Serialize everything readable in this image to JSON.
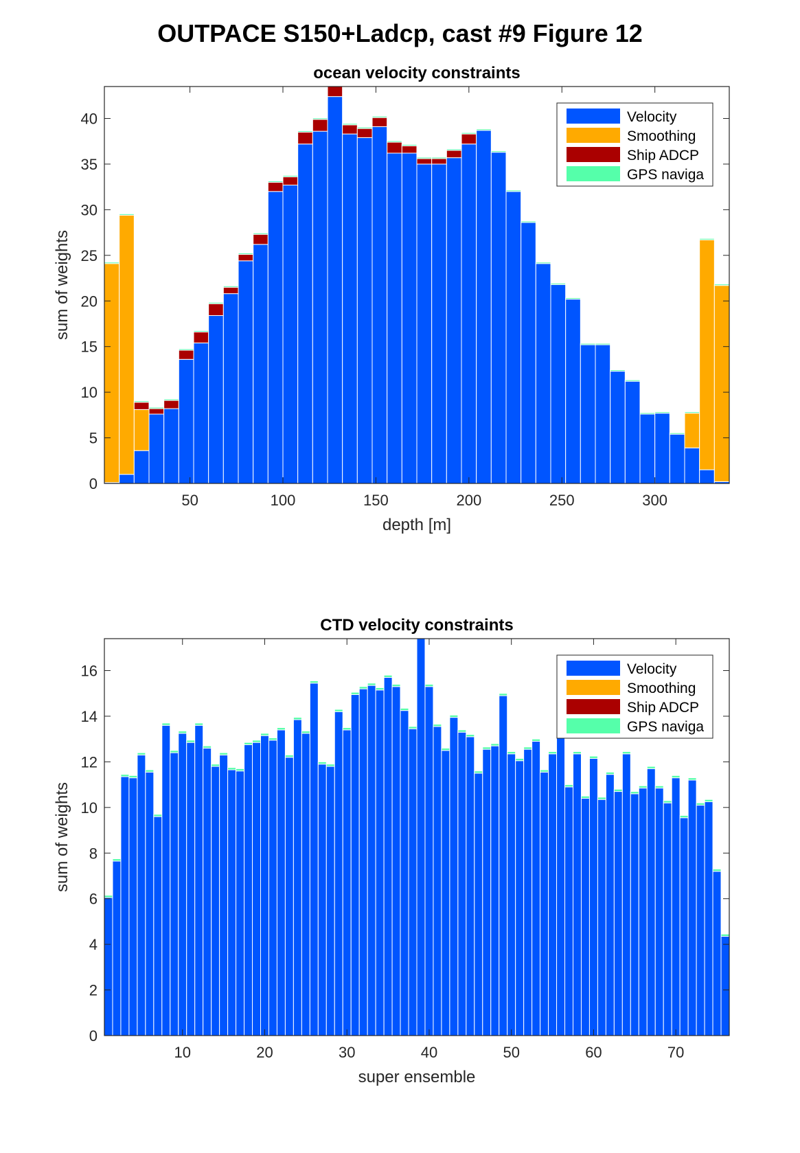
{
  "figure": {
    "title": "OUTPACE S150+Ladcp, cast #9  Figure 12"
  },
  "colors": {
    "velocity": "#0055ff",
    "smoothing": "#ffaa00",
    "ship_adcp": "#aa0000",
    "gps": "#55ffaa",
    "bar_edge": "#ffffff"
  },
  "chart_data": [
    {
      "type": "bar",
      "stacked": true,
      "title": "ocean velocity constraints",
      "xlabel": "depth [m]",
      "ylabel": "sum of weights",
      "xlim": [
        4,
        340
      ],
      "ylim": [
        0,
        43.5
      ],
      "xticks": [
        50,
        100,
        150,
        200,
        250,
        300
      ],
      "yticks": [
        0,
        5,
        10,
        15,
        20,
        25,
        30,
        35,
        40
      ],
      "bar_width": 8,
      "legend": {
        "location": "top-right",
        "entries": [
          "Velocity",
          "Smoothing",
          "Ship ADCP",
          "GPS naviga"
        ]
      },
      "x": [
        8,
        16,
        24,
        32,
        40,
        48,
        56,
        64,
        72,
        80,
        88,
        96,
        104,
        112,
        120,
        128,
        136,
        144,
        152,
        160,
        168,
        176,
        184,
        192,
        200,
        208,
        216,
        224,
        232,
        240,
        248,
        256,
        264,
        272,
        280,
        288,
        296,
        304,
        312,
        320,
        328,
        336
      ],
      "series": [
        {
          "name": "Velocity",
          "color": "#0055ff",
          "values": [
            0.1,
            1.0,
            3.6,
            7.6,
            8.2,
            13.6,
            15.4,
            18.4,
            20.8,
            24.4,
            26.2,
            32.0,
            32.7,
            37.2,
            38.6,
            42.4,
            38.3,
            37.9,
            39.1,
            36.2,
            36.2,
            35.0,
            35.0,
            35.7,
            37.2,
            38.7,
            36.3,
            32.0,
            28.6,
            24.1,
            21.8,
            20.2,
            15.2,
            15.2,
            12.3,
            11.2,
            7.6,
            7.7,
            5.4,
            3.9,
            1.5,
            0.2
          ]
        },
        {
          "name": "Smoothing",
          "color": "#ffaa00",
          "values": [
            24.0,
            28.4,
            4.5,
            0,
            0,
            0,
            0,
            0,
            0,
            0,
            0,
            0,
            0,
            0,
            0,
            0,
            0,
            0,
            0,
            0,
            0,
            0,
            0,
            0,
            0,
            0,
            0,
            0,
            0,
            0,
            0,
            0,
            0,
            0,
            0,
            0,
            0,
            0,
            0,
            3.8,
            25.2,
            21.5
          ]
        },
        {
          "name": "Ship ADCP",
          "color": "#aa0000",
          "values": [
            0,
            0,
            0.8,
            0.6,
            0.9,
            1.0,
            1.2,
            1.3,
            0.7,
            0.7,
            1.1,
            1.0,
            0.9,
            1.3,
            1.3,
            1.3,
            1.0,
            1.0,
            1.0,
            1.2,
            0.8,
            0.6,
            0.6,
            0.8,
            1.1,
            0,
            0,
            0,
            0,
            0,
            0,
            0,
            0,
            0,
            0,
            0,
            0,
            0,
            0,
            0,
            0,
            0
          ]
        },
        {
          "name": "GPS naviga",
          "color": "#55ffaa",
          "values": [
            0.15,
            0.15,
            0.15,
            0.15,
            0.15,
            0.15,
            0.15,
            0.15,
            0.15,
            0.15,
            0.15,
            0.15,
            0.15,
            0.15,
            0.15,
            0.15,
            0.15,
            0.15,
            0.15,
            0.15,
            0.15,
            0.15,
            0.15,
            0.15,
            0.15,
            0.15,
            0.15,
            0.15,
            0.15,
            0.15,
            0.15,
            0.15,
            0.15,
            0.15,
            0.15,
            0.15,
            0.15,
            0.15,
            0.15,
            0.15,
            0.15,
            0.15
          ]
        }
      ]
    },
    {
      "type": "bar",
      "stacked": true,
      "title": "CTD velocity constraints",
      "xlabel": "super ensemble",
      "ylabel": "sum of weights",
      "xlim": [
        0.5,
        76.5
      ],
      "ylim": [
        0,
        17.4
      ],
      "xticks": [
        10,
        20,
        30,
        40,
        50,
        60,
        70
      ],
      "yticks": [
        0,
        2,
        4,
        6,
        8,
        10,
        12,
        14,
        16
      ],
      "bar_width": 1,
      "legend": {
        "location": "top-right",
        "entries": [
          "Velocity",
          "Smoothing",
          "Ship ADCP",
          "GPS naviga"
        ]
      },
      "x": [
        1,
        2,
        3,
        4,
        5,
        6,
        7,
        8,
        9,
        10,
        11,
        12,
        13,
        14,
        15,
        16,
        17,
        18,
        19,
        20,
        21,
        22,
        23,
        24,
        25,
        26,
        27,
        28,
        29,
        30,
        31,
        32,
        33,
        34,
        35,
        36,
        37,
        38,
        39,
        40,
        41,
        42,
        43,
        44,
        45,
        46,
        47,
        48,
        49,
        50,
        51,
        52,
        53,
        54,
        55,
        56,
        57,
        58,
        59,
        60,
        61,
        62,
        63,
        64,
        65,
        66,
        67,
        68,
        69,
        70,
        71,
        72,
        73,
        74,
        75,
        76
      ],
      "series": [
        {
          "name": "Velocity",
          "color": "#0055ff",
          "values": [
            6.05,
            7.65,
            11.35,
            11.3,
            12.3,
            11.55,
            9.6,
            13.6,
            12.4,
            13.25,
            12.85,
            13.6,
            12.6,
            11.8,
            12.3,
            11.65,
            11.6,
            12.75,
            12.85,
            13.15,
            12.95,
            13.4,
            12.2,
            13.85,
            13.25,
            15.45,
            11.9,
            11.8,
            14.2,
            13.4,
            14.95,
            15.2,
            15.35,
            15.15,
            15.7,
            15.3,
            14.25,
            13.45,
            17.4,
            15.3,
            13.55,
            12.5,
            13.95,
            13.3,
            13.1,
            11.5,
            12.55,
            12.7,
            14.9,
            12.35,
            12.05,
            12.55,
            12.9,
            11.55,
            12.35,
            13.35,
            10.9,
            12.35,
            10.4,
            12.15,
            10.35,
            11.45,
            10.7,
            12.35,
            10.6,
            10.85,
            11.7,
            10.85,
            10.2,
            11.3,
            9.55,
            11.2,
            10.1,
            10.25,
            7.2,
            4.35
          ]
        },
        {
          "name": "Smoothing",
          "color": "#ffaa00",
          "values": [
            0,
            0,
            0,
            0,
            0,
            0,
            0,
            0,
            0,
            0,
            0,
            0,
            0,
            0,
            0,
            0,
            0,
            0,
            0,
            0,
            0,
            0,
            0,
            0,
            0,
            0,
            0,
            0,
            0,
            0,
            0,
            0,
            0,
            0,
            0,
            0,
            0,
            0,
            0,
            0,
            0,
            0,
            0,
            0,
            0,
            0,
            0,
            0,
            0,
            0,
            0,
            0,
            0,
            0,
            0,
            0,
            0,
            0,
            0,
            0,
            0,
            0,
            0,
            0,
            0,
            0,
            0,
            0,
            0,
            0,
            0,
            0,
            0,
            0,
            0,
            0
          ]
        },
        {
          "name": "Ship ADCP",
          "color": "#aa0000",
          "values": [
            0,
            0,
            0,
            0,
            0,
            0,
            0,
            0,
            0,
            0,
            0,
            0,
            0,
            0,
            0,
            0,
            0,
            0,
            0,
            0,
            0,
            0,
            0,
            0,
            0,
            0,
            0,
            0,
            0,
            0,
            0,
            0,
            0,
            0,
            0,
            0,
            0,
            0,
            0,
            0,
            0,
            0,
            0,
            0,
            0,
            0,
            0,
            0,
            0,
            0,
            0,
            0,
            0,
            0,
            0,
            0,
            0,
            0,
            0,
            0,
            0,
            0,
            0,
            0,
            0,
            0,
            0,
            0,
            0,
            0,
            0,
            0,
            0,
            0,
            0,
            0
          ]
        },
        {
          "name": "GPS naviga",
          "color": "#55ffaa",
          "values": [
            0.1,
            0.1,
            0.1,
            0.1,
            0.1,
            0.1,
            0.1,
            0.1,
            0.1,
            0.1,
            0.1,
            0.1,
            0.1,
            0.1,
            0.1,
            0.1,
            0.1,
            0.1,
            0.1,
            0.1,
            0.1,
            0.1,
            0.1,
            0.1,
            0.1,
            0.1,
            0.1,
            0.1,
            0.1,
            0.1,
            0.1,
            0.1,
            0.1,
            0.1,
            0.1,
            0.1,
            0.1,
            0.1,
            0.1,
            0.1,
            0.1,
            0.1,
            0.1,
            0.1,
            0.1,
            0.1,
            0.1,
            0.1,
            0.1,
            0.1,
            0.1,
            0.1,
            0.1,
            0.1,
            0.1,
            0.1,
            0.1,
            0.1,
            0.1,
            0.1,
            0.1,
            0.1,
            0.1,
            0.1,
            0.1,
            0.1,
            0.1,
            0.1,
            0.1,
            0.1,
            0.1,
            0.1,
            0.1,
            0.1,
            0.1,
            0.1
          ]
        }
      ]
    }
  ]
}
